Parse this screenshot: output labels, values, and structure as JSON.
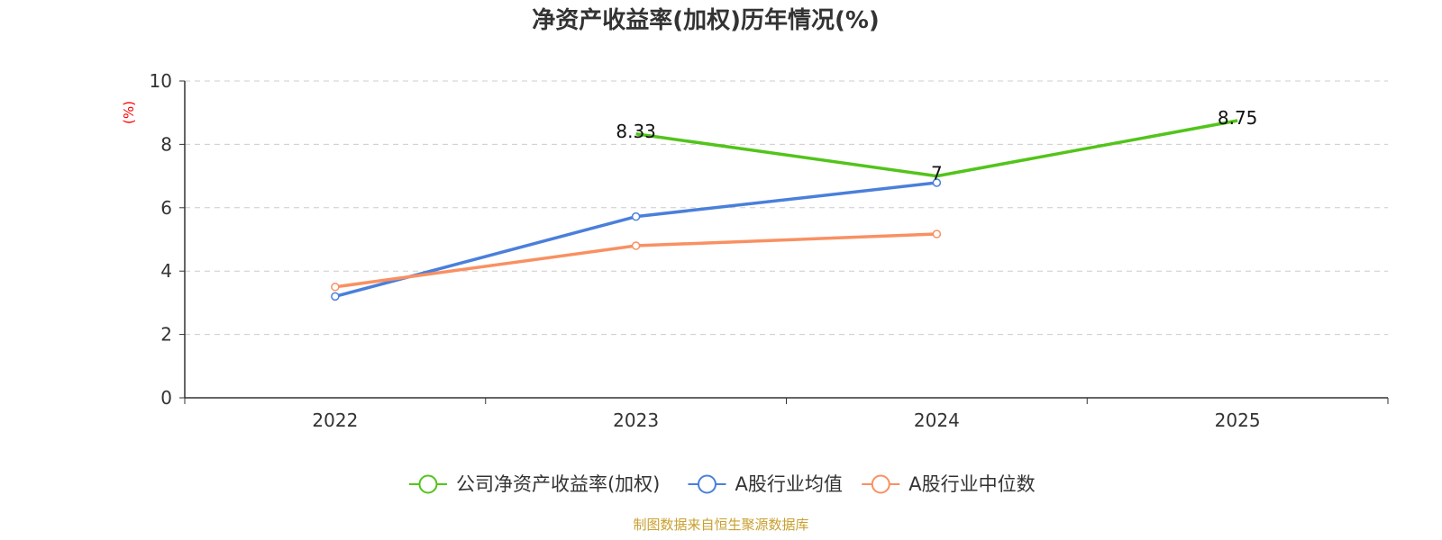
{
  "chart_data": {
    "type": "line",
    "title": "净资产收益率(加权)历年情况(%)",
    "ylabel": "(%)",
    "xlabel": "",
    "categories": [
      "2022",
      "2023",
      "2024",
      "2025"
    ],
    "ylim": [
      0,
      10
    ],
    "yticks": [
      0,
      2,
      4,
      6,
      8,
      10
    ],
    "grid": true,
    "legend_position": "bottom",
    "series": [
      {
        "name": "公司净资产收益率(加权)",
        "color": "#52c41a",
        "values": [
          null,
          8.33,
          7,
          8.75
        ],
        "show_labels": true,
        "show_markers": false
      },
      {
        "name": "A股行业均值",
        "color": "#4a7fdb",
        "values": [
          3.2,
          5.72,
          6.79,
          null
        ],
        "show_labels": false,
        "show_markers": true
      },
      {
        "name": "A股行业中位数",
        "color": "#f99062",
        "values": [
          3.5,
          4.8,
          5.17,
          null
        ],
        "show_labels": false,
        "show_markers": true
      }
    ],
    "data_labels": [
      "8.33",
      "7",
      "8.75"
    ]
  },
  "source": "制图数据来自恒生聚源数据库"
}
